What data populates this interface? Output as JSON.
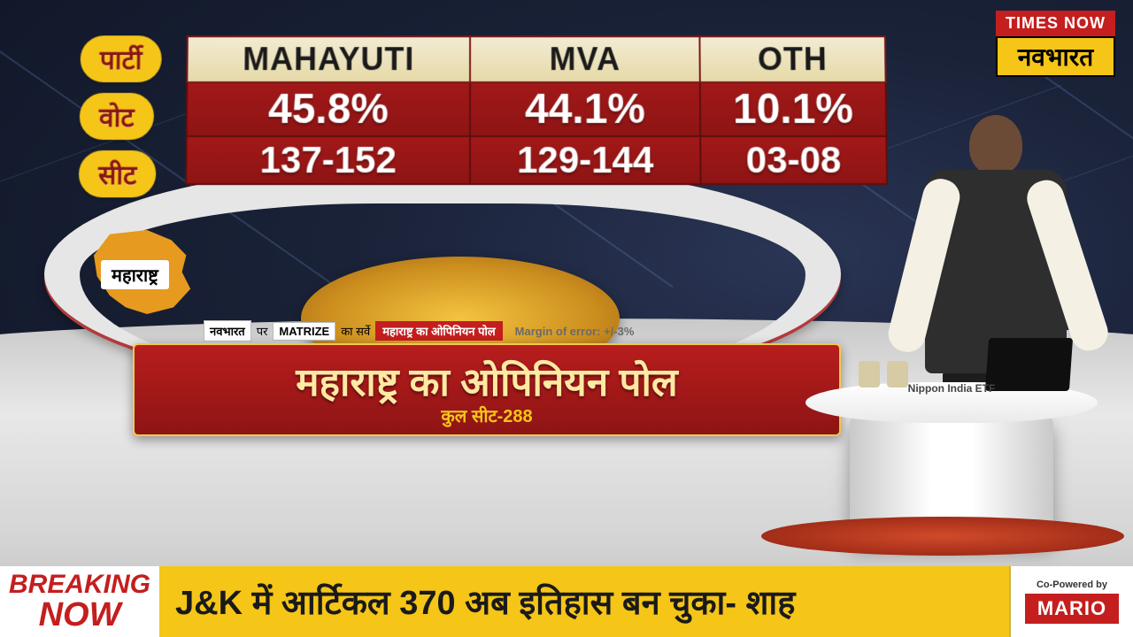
{
  "channel": {
    "line1": "TIMES NOW",
    "line2": "नवभारत"
  },
  "labels": {
    "party": "पार्टी",
    "vote": "वोट",
    "seat": "सीट"
  },
  "poll": {
    "columns": [
      {
        "name": "MAHAYUTI",
        "vote": "45.8%",
        "seat": "137-152"
      },
      {
        "name": "MVA",
        "vote": "44.1%",
        "seat": "129-144"
      },
      {
        "name": "OTH",
        "vote": "10.1%",
        "seat": "03-08"
      }
    ]
  },
  "state": {
    "name": "महाराष्ट्र"
  },
  "survey": {
    "src_prefix_hi": "नवभारत",
    "par": "पर",
    "matrize": "MATRIZE",
    "ka_survey": "का सर्वे",
    "tag": "महाराष्ट्र का ओपिनियन पोल",
    "moe": "Margin of error: +/-3%"
  },
  "headline": {
    "main": "महाराष्ट्र का ओपिनियन पोल",
    "sub": "कुल सीट-288"
  },
  "desk": {
    "sponsor": "Nippon India ETF"
  },
  "ticker": {
    "breaking1": "BREAKING",
    "breaking2": "NOW",
    "text": "J&K में आर्टिकल 370 अब इतिहास बन चुका- शाह",
    "sponsor_label": "Co-Powered by",
    "sponsor_brand": "MARIO"
  },
  "colors": {
    "brand_red": "#c41e1e",
    "brand_yellow": "#f5c518",
    "panel_red_top": "#a21818",
    "panel_red_bottom": "#8e1414",
    "header_bg_top": "#f2ebd2",
    "header_bg_bottom": "#e6d9a8",
    "map_orange": "#e69a1f"
  }
}
